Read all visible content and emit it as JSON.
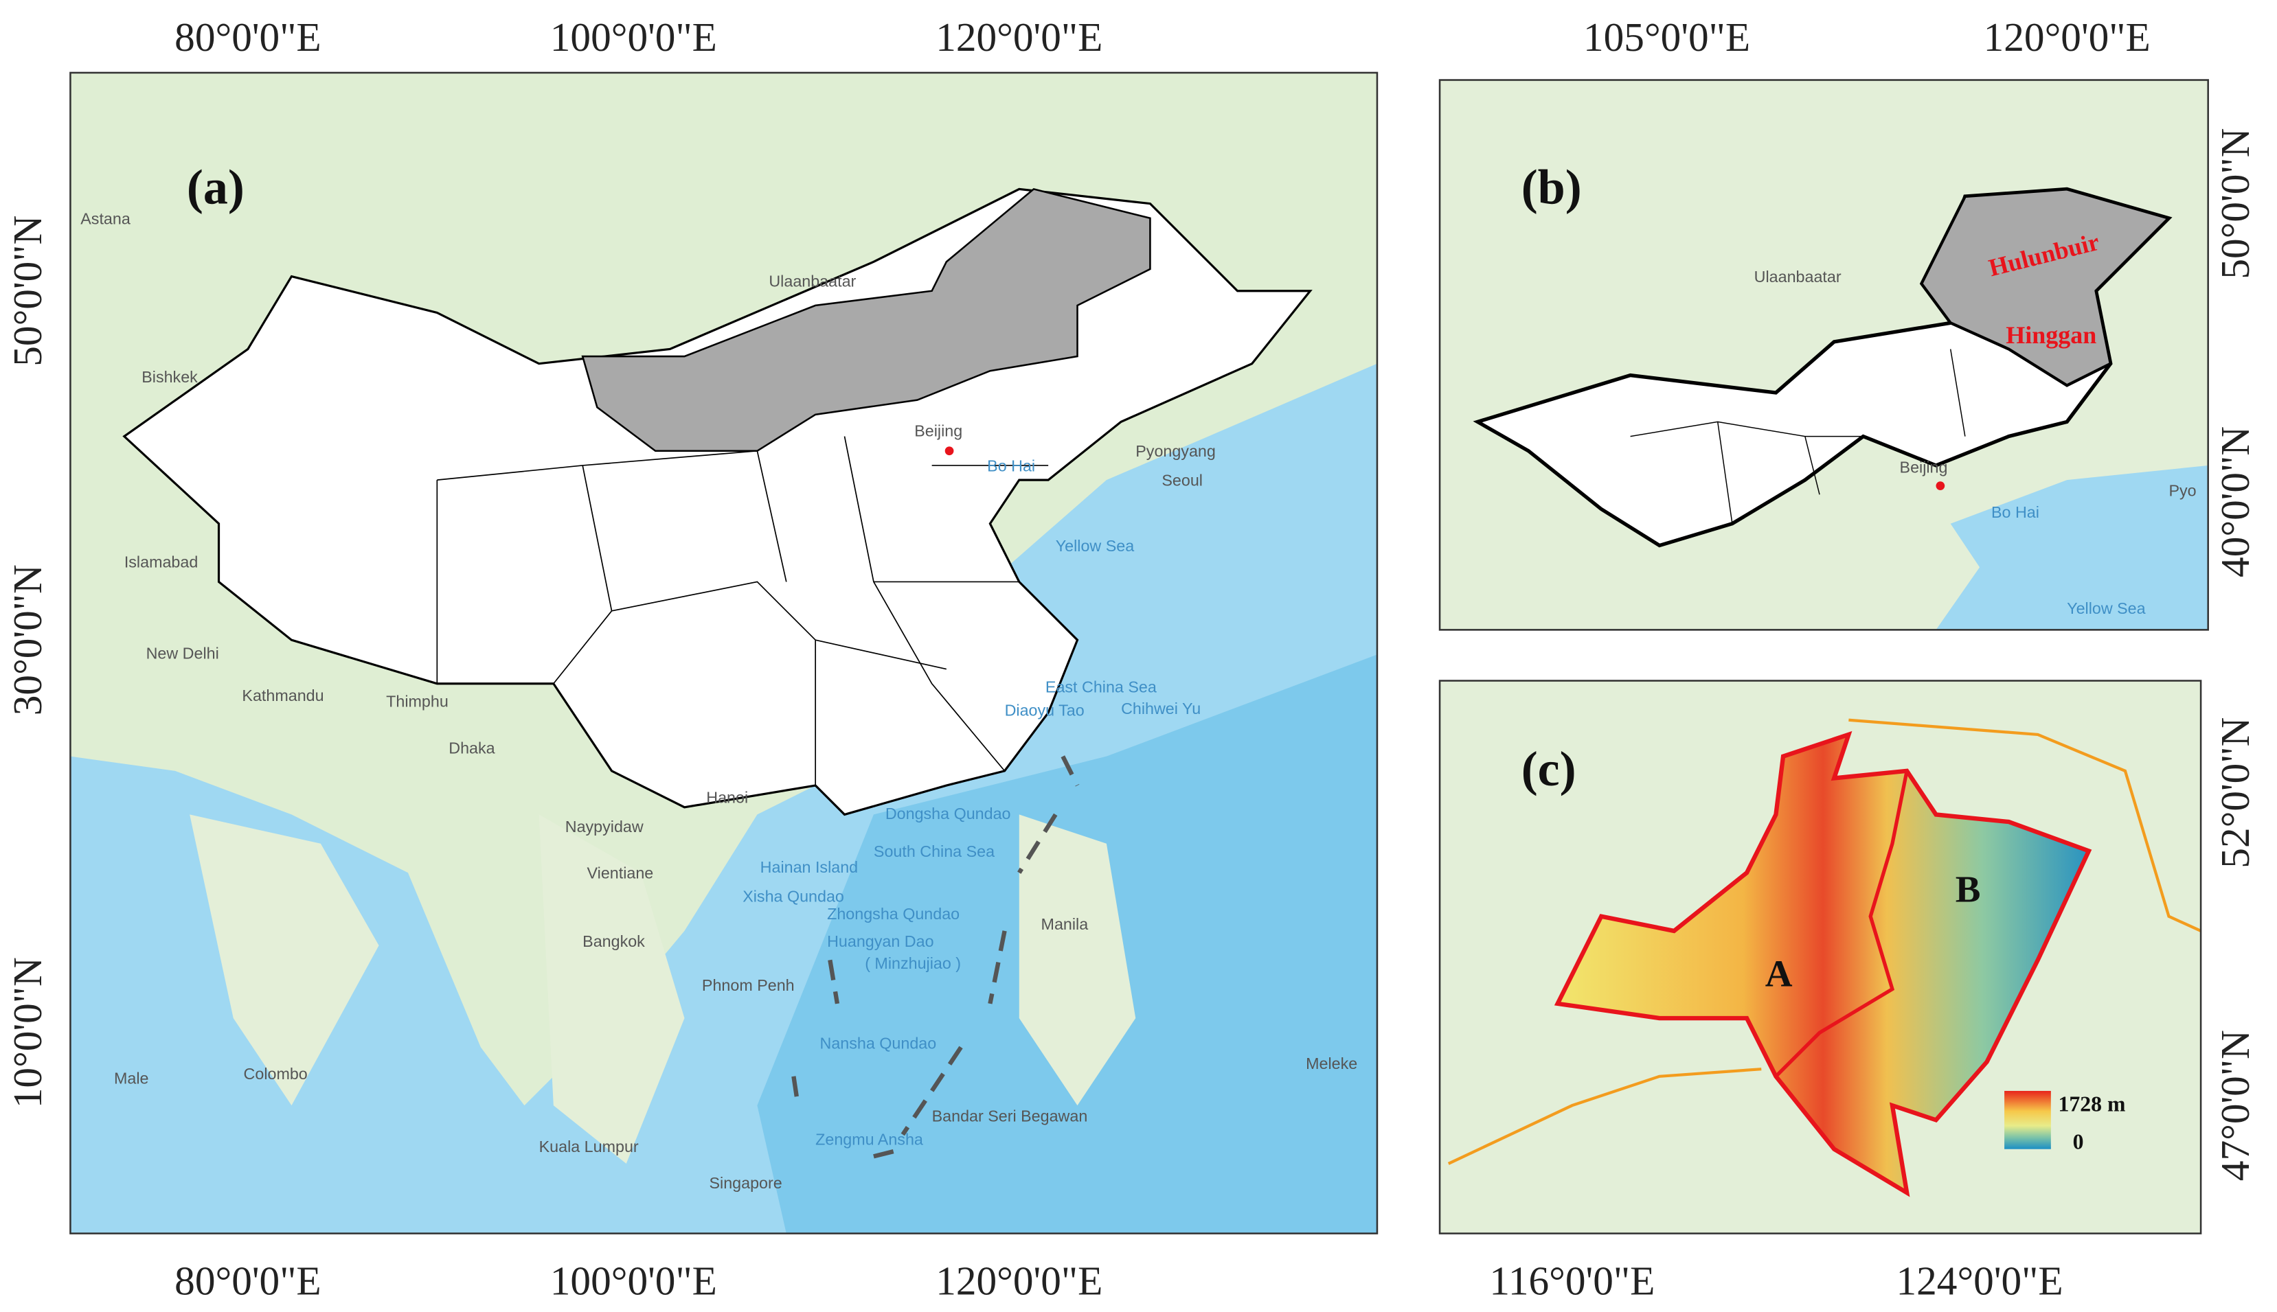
{
  "panels": [
    {
      "label": "(a)",
      "x_ticks": [
        "80°0'0\"E",
        "100°0'0\"E",
        "120°0'0\"E"
      ],
      "y_ticks": [
        "50°0'0\"N",
        "30°0'0\"N",
        "10°0'0\"N"
      ],
      "places": [
        "Astana",
        "Bishkek",
        "Islamabad",
        "New Delhi",
        "Kathmandu",
        "Thimphu",
        "Dhaka",
        "Naypyidaw",
        "Vientiane",
        "Bangkok",
        "Phnom Penh",
        "Hanoi",
        "Male",
        "Colombo",
        "Kuala Lumpur",
        "Singapore",
        "Bandar Seri Begawan",
        "Manila",
        "Pyongyang",
        "Seoul",
        "Ulaanbaatar",
        "Beijing",
        "Meleke"
      ],
      "seas": [
        "Bo Hai",
        "Yellow Sea",
        "East China Sea",
        "Diaoyu Tao",
        "Chihwei Yu",
        "Dongsha Qundao",
        "South China Sea",
        "Hainan Island",
        "Xisha Qundao",
        "Zhongsha Qundao",
        "Huangyan Dao",
        "( Minzhujiao )",
        "Nansha Qundao",
        "Zengmu Ansha"
      ]
    },
    {
      "label": "(b)",
      "x_ticks": [
        "105°0'0\"E",
        "120°0'0\"E"
      ],
      "y_ticks": [
        "50°0'0\"N",
        "40°0'0\"N"
      ],
      "places": [
        "Ulaanbaatar",
        "Beijing",
        "Pyo"
      ],
      "seas": [
        "Bo Hai",
        "Yellow Sea"
      ],
      "regions": [
        "Hulunbuir",
        "Hinggan"
      ]
    },
    {
      "label": "(c)",
      "x_ticks": [
        "116°0'0\"E",
        "124°0'0\"E"
      ],
      "y_ticks": [
        "52°0'0\"N",
        "47°0'0\"N"
      ],
      "zones": [
        "A",
        "B"
      ],
      "legend": {
        "max": "1728 m",
        "min": "0"
      }
    }
  ]
}
